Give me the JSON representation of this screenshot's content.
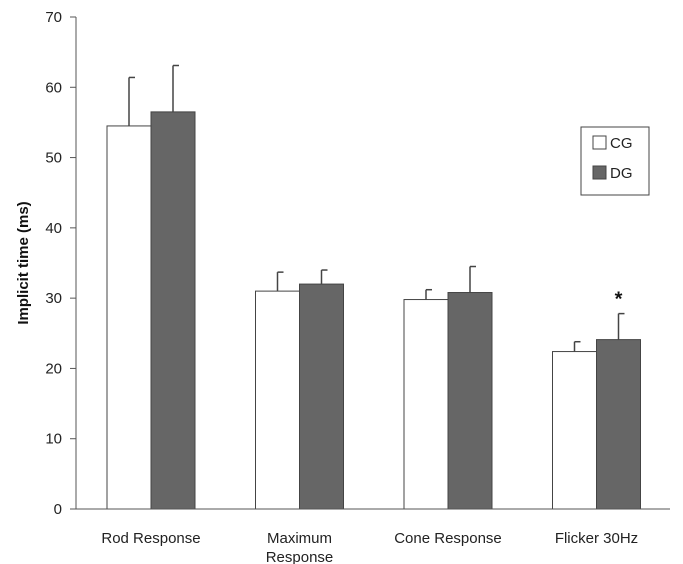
{
  "chart_data": {
    "type": "bar",
    "title": "",
    "xlabel": "",
    "ylabel": "Implicit time (ms)",
    "ylim": [
      0,
      70
    ],
    "yticks": [
      0,
      10,
      20,
      30,
      40,
      50,
      60,
      70
    ],
    "grid": false,
    "legend_position": "right",
    "categories": [
      "Rod Response",
      "Maximum Response",
      "Cone Response",
      "Flicker 30Hz"
    ],
    "category_lines": [
      [
        "Rod Response"
      ],
      [
        "Maximum",
        "Response"
      ],
      [
        "Cone Response"
      ],
      [
        "Flicker 30Hz"
      ]
    ],
    "series": [
      {
        "name": "CG",
        "color": "#ffffff",
        "values": [
          54.5,
          31.0,
          29.8,
          22.4
        ],
        "errors": [
          6.9,
          2.7,
          1.4,
          1.4
        ]
      },
      {
        "name": "DG",
        "color": "#666666",
        "values": [
          56.5,
          32.0,
          30.8,
          24.1
        ],
        "errors": [
          6.6,
          2.0,
          3.7,
          3.7
        ]
      }
    ],
    "annotations": [
      {
        "category_index": 3,
        "series_index": 1,
        "text": "*"
      }
    ]
  }
}
